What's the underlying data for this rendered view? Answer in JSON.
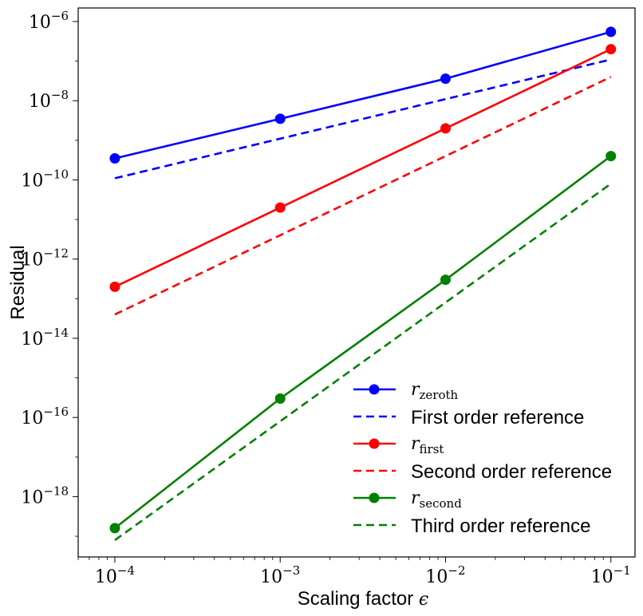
{
  "chart_data": {
    "type": "line",
    "x_scale": "log",
    "y_scale": "log",
    "xlim": [
      6e-05,
      0.14
    ],
    "ylim": [
      3e-20,
      2.2e-06
    ],
    "xlabel_text": "Scaling factor",
    "xlabel_symbol": "ϵ",
    "ylabel": "Residual",
    "x_ticks": [
      {
        "base": "10",
        "exp": "−4",
        "value": 0.0001
      },
      {
        "base": "10",
        "exp": "−3",
        "value": 0.001
      },
      {
        "base": "10",
        "exp": "−2",
        "value": 0.01
      },
      {
        "base": "10",
        "exp": "−1",
        "value": 0.1
      }
    ],
    "y_ticks": [
      {
        "base": "10",
        "exp": "−6",
        "value": 1e-06
      },
      {
        "base": "10",
        "exp": "−8",
        "value": 1e-08
      },
      {
        "base": "10",
        "exp": "−10",
        "value": 1e-10
      },
      {
        "base": "10",
        "exp": "−12",
        "value": 1e-12
      },
      {
        "base": "10",
        "exp": "−14",
        "value": 1e-14
      },
      {
        "base": "10",
        "exp": "−16",
        "value": 1e-16
      },
      {
        "base": "10",
        "exp": "−18",
        "value": 1e-18
      }
    ],
    "x": [
      0.0001,
      0.001,
      0.01,
      0.1
    ],
    "series": [
      {
        "name": "r_zeroth",
        "label_symbol": "r",
        "label_sub": "zeroth",
        "style": "solid-marker",
        "color": "#0000ff",
        "values": [
          3.5e-10,
          3.5e-09,
          3.6e-08,
          5.5e-07
        ]
      },
      {
        "name": "First order reference",
        "label_text": "First order reference",
        "style": "dashed",
        "color": "#0000ff",
        "values": [
          1.1e-10,
          1.1e-09,
          1.1e-08,
          1.1e-07
        ]
      },
      {
        "name": "r_first",
        "label_symbol": "r",
        "label_sub": "first",
        "style": "solid-marker",
        "color": "#ff0000",
        "values": [
          2e-13,
          2e-11,
          2e-09,
          2e-07
        ]
      },
      {
        "name": "Second order reference",
        "label_text": "Second order reference",
        "style": "dashed",
        "color": "#ff0000",
        "values": [
          4e-14,
          4e-12,
          4e-10,
          4e-08
        ]
      },
      {
        "name": "r_second",
        "label_symbol": "r",
        "label_sub": "second",
        "style": "solid-marker",
        "color": "#008000",
        "values": [
          1.6e-19,
          3e-16,
          3e-13,
          4e-10
        ]
      },
      {
        "name": "Third order reference",
        "label_text": "Third order reference",
        "style": "dashed",
        "color": "#008000",
        "values": [
          8e-20,
          8e-17,
          8e-14,
          8e-11
        ]
      }
    ],
    "legend_position": "lower-right",
    "grid": false
  }
}
